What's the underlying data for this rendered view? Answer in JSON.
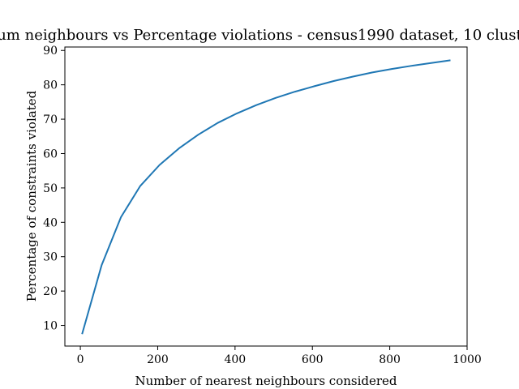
{
  "chart_data": {
    "type": "line",
    "title": "um neighbours vs Percentage violations - census1990 dataset, 10 clust",
    "xlabel": "Number of nearest neighbours considered",
    "ylabel": "Percentage of constraints violated",
    "xlim": [
      -40,
      1000
    ],
    "ylim": [
      4,
      91
    ],
    "xticks": [
      0,
      200,
      400,
      600,
      800,
      1000
    ],
    "yticks": [
      10,
      20,
      30,
      40,
      50,
      60,
      70,
      80,
      90
    ],
    "grid": false,
    "series": [
      {
        "color": "#1f77b4",
        "x": [
          5,
          55,
          105,
          155,
          205,
          255,
          305,
          355,
          405,
          455,
          505,
          555,
          605,
          655,
          705,
          755,
          805,
          855,
          905,
          955
        ],
        "y": [
          7.7,
          27.5,
          41.5,
          50.6,
          56.7,
          61.5,
          65.5,
          68.9,
          71.7,
          74.1,
          76.2,
          78.0,
          79.6,
          81.1,
          82.4,
          83.6,
          84.6,
          85.5,
          86.3,
          87.1
        ]
      }
    ]
  }
}
